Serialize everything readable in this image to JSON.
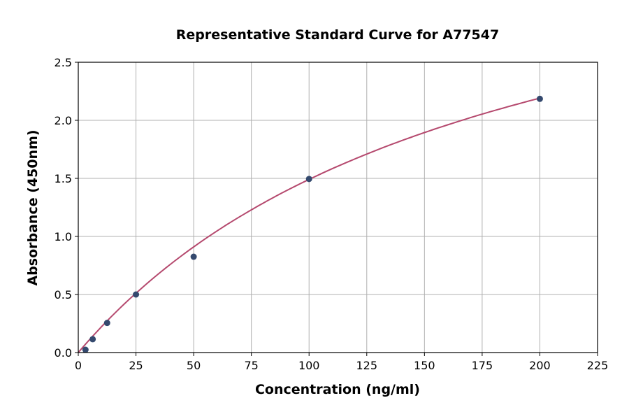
{
  "chart_data": {
    "type": "scatter",
    "title": "Representative Standard Curve for A77547",
    "xlabel": "Concentration (ng/ml)",
    "ylabel": "Absorbance (450nm)",
    "xlim": [
      0,
      225
    ],
    "ylim": [
      0,
      2.5
    ],
    "xticks": [
      "0",
      "25",
      "50",
      "75",
      "100",
      "125",
      "150",
      "175",
      "200",
      "225"
    ],
    "yticks": [
      "0.0",
      "0.5",
      "1.0",
      "1.5",
      "2.0",
      "2.5"
    ],
    "grid": true,
    "points": {
      "x": [
        3.125,
        6.25,
        12.5,
        25,
        50,
        100,
        200
      ],
      "y": [
        0.024,
        0.115,
        0.255,
        0.5,
        0.825,
        1.495,
        2.185
      ]
    },
    "point_color": "#34496e",
    "curve_color": "#b5496e",
    "has_fitted_curve": true
  }
}
